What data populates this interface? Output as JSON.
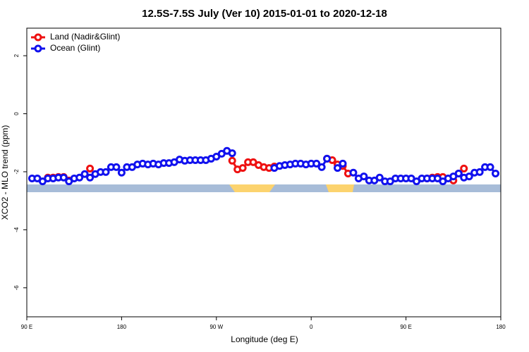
{
  "chart_data": {
    "type": "line",
    "title": "12.5S-7.5S July (Ver 10)   2015-01-01 to 2020-12-18",
    "xlabel": "Longitude (deg E)",
    "ylabel": "XCO2 - MLO trend (ppm)",
    "xlim": [
      90,
      540
    ],
    "ylim": [
      -7,
      2.95
    ],
    "xticks": [
      {
        "value": 90,
        "label": "90 E"
      },
      180,
      {
        "value": 270,
        "label": "90 W"
      },
      {
        "value": 360,
        "label": "0"
      },
      {
        "value": 450,
        "label": "90 E"
      },
      {
        "value": 540,
        "label": "180"
      }
    ],
    "yticks": [
      -6,
      -4,
      -2,
      0,
      2
    ],
    "legend": "top-left",
    "x": [
      95,
      100,
      105,
      110,
      115,
      120,
      125,
      130,
      135,
      140,
      145,
      150,
      155,
      160,
      165,
      170,
      175,
      180,
      185,
      190,
      195,
      200,
      205,
      210,
      215,
      220,
      225,
      230,
      235,
      240,
      245,
      250,
      255,
      260,
      265,
      270,
      275,
      280,
      285,
      290,
      295,
      300,
      305,
      310,
      315,
      320,
      325,
      330,
      335,
      340,
      345,
      350,
      355,
      360,
      365,
      370,
      375,
      380,
      385,
      390,
      395,
      400,
      405,
      410,
      415,
      420,
      425,
      430,
      435,
      440,
      445,
      450,
      455,
      460,
      465,
      470,
      475,
      480,
      485,
      490,
      495,
      500,
      505,
      510,
      515,
      520,
      525,
      530,
      535
    ],
    "series": [
      {
        "name": "Land (Nadir&Glint)",
        "color": "#ee1111",
        "values": [
          null,
          null,
          null,
          -2.2,
          -2.2,
          -2.18,
          -2.18,
          -2.3,
          null,
          null,
          null,
          -1.89,
          null,
          null,
          null,
          null,
          null,
          null,
          null,
          null,
          null,
          null,
          null,
          null,
          null,
          null,
          null,
          null,
          null,
          null,
          null,
          null,
          null,
          null,
          null,
          null,
          null,
          null,
          -1.62,
          -1.92,
          -1.87,
          -1.67,
          -1.67,
          -1.77,
          -1.84,
          -1.87,
          -1.82,
          null,
          null,
          null,
          null,
          null,
          null,
          null,
          null,
          null,
          -1.55,
          -1.6,
          -1.75,
          -1.8,
          -2.06,
          null,
          null,
          null,
          null,
          null,
          null,
          null,
          null,
          null,
          null,
          null,
          null,
          null,
          null,
          -2.23,
          -2.2,
          -2.18,
          -2.18,
          null,
          -2.3,
          -2.06,
          -1.89,
          null,
          null,
          null,
          null,
          null,
          null
        ]
      },
      {
        "name": "Ocean (Glint)",
        "color": "#1111ee",
        "values": [
          -2.23,
          -2.23,
          -2.33,
          -2.23,
          -2.23,
          -2.2,
          -2.2,
          -2.33,
          -2.23,
          -2.2,
          -2.08,
          -2.2,
          -2.08,
          -2.01,
          -2.01,
          -1.84,
          -1.84,
          -2.03,
          -1.84,
          -1.84,
          -1.75,
          -1.72,
          -1.75,
          -1.72,
          -1.75,
          -1.7,
          -1.7,
          -1.67,
          -1.58,
          -1.62,
          -1.6,
          -1.6,
          -1.6,
          -1.6,
          -1.55,
          -1.48,
          -1.38,
          -1.28,
          -1.36,
          null,
          null,
          null,
          null,
          null,
          null,
          null,
          -1.87,
          -1.8,
          -1.77,
          -1.75,
          -1.72,
          -1.72,
          -1.75,
          -1.72,
          -1.72,
          -1.84,
          -1.55,
          null,
          -1.87,
          -1.72,
          null,
          -2.03,
          -2.23,
          -2.16,
          -2.3,
          -2.3,
          -2.2,
          -2.33,
          -2.33,
          -2.23,
          -2.23,
          -2.23,
          -2.23,
          -2.33,
          -2.23,
          -2.23,
          -2.23,
          -2.23,
          -2.33,
          -2.23,
          -2.16,
          -2.06,
          -2.2,
          -2.16,
          -2.03,
          -2.01,
          -1.84,
          -1.84,
          -2.06
        ]
      }
    ]
  }
}
